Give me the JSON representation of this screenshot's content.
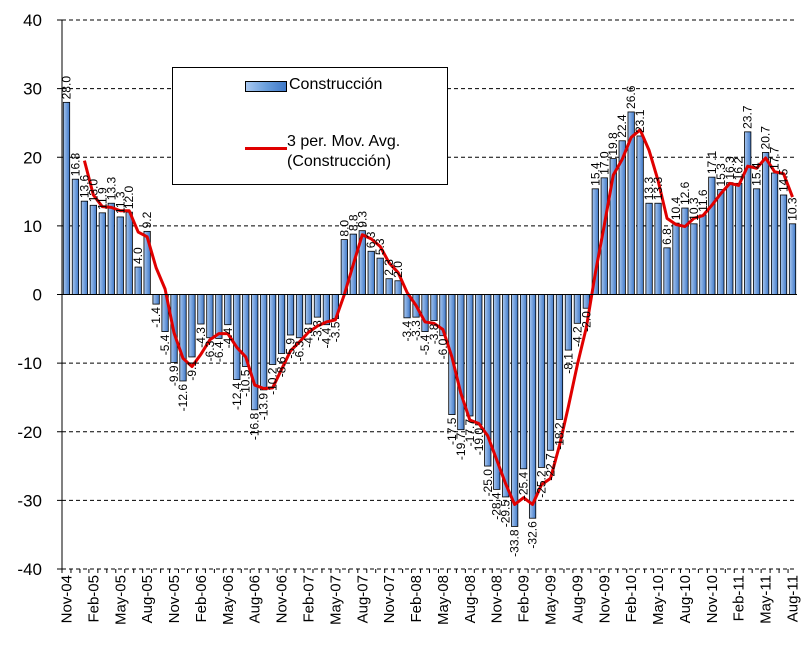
{
  "chart_data": {
    "type": "bar",
    "categories": [
      "Nov-04",
      null,
      null,
      "Feb-05",
      null,
      null,
      "May-05",
      null,
      null,
      "Aug-05",
      null,
      null,
      "Nov-05",
      null,
      null,
      "Feb-06",
      null,
      null,
      "May-06",
      null,
      null,
      "Aug-06",
      null,
      null,
      "Nov-06",
      null,
      null,
      "Feb-07",
      null,
      null,
      "May-07",
      null,
      null,
      "Aug-07",
      null,
      null,
      "Nov-07",
      null,
      null,
      "Feb-08",
      null,
      null,
      "May-08",
      null,
      null,
      "Aug-08",
      null,
      null,
      "Nov-08",
      null,
      null,
      "Feb-09",
      null,
      null,
      "May-09",
      null,
      null,
      "Aug-09",
      null,
      null,
      "Nov-09",
      null,
      null,
      "Feb-10",
      null,
      null,
      "May-10",
      null,
      null,
      "Aug-10",
      null,
      null,
      "Nov-10",
      null,
      null,
      "Feb-11",
      null,
      null,
      "May-11",
      null,
      null,
      "Aug-11"
    ],
    "series": [
      {
        "name": "Construcción",
        "type": "bar",
        "color": "#6a9fdc",
        "values": [
          28.0,
          16.8,
          13.6,
          13.0,
          11.9,
          13.3,
          11.3,
          12.0,
          4.0,
          9.2,
          -1.4,
          -5.4,
          -9.9,
          -12.6,
          -9.1,
          -4.3,
          -6.3,
          -6.4,
          -4.4,
          -12.4,
          -10.5,
          -16.8,
          -13.9,
          -10.2,
          -8.6,
          -5.9,
          -6.3,
          -4.3,
          -3.3,
          -4.4,
          -3.5,
          8.0,
          8.8,
          9.3,
          6.3,
          5.3,
          2.3,
          2.0,
          -3.4,
          -3.3,
          -5.4,
          -3.8,
          -6.0,
          -17.5,
          -19.7,
          -17.7,
          -19.0,
          -25.0,
          -28.4,
          -29.5,
          -33.8,
          -25.4,
          -32.6,
          -25.2,
          -22.7,
          -18.2,
          -8.1,
          -4.2,
          -2.0,
          15.4,
          17.0,
          19.8,
          22.4,
          26.6,
          23.1,
          13.3,
          13.3,
          6.8,
          10.4,
          12.6,
          10.3,
          11.6,
          17.1,
          15.3,
          16.3,
          16.2,
          23.7,
          15.4,
          20.7,
          17.7,
          14.5,
          10.3
        ],
        "value_labels": [
          "28.0",
          "16.8",
          "13.6",
          "13.0",
          "11.9",
          "13.3",
          "11.3",
          "12.0",
          "4.0",
          "9.2",
          "-1.4",
          "-5.4",
          "-9.9",
          "-12.6",
          "-9.1",
          "-4.3",
          "-6.3",
          "-6.4",
          "-4.4",
          "-12.4",
          "-10.5",
          "-16.8",
          "-13.9",
          "-10.2",
          "-8.6",
          "-5.9",
          "-6.3",
          "-4.3",
          "-3.3",
          "-4.4",
          "-3.5",
          "8.0",
          "8.8",
          "9.3",
          "6.3",
          "5.3",
          "2.3",
          "2.0",
          "-3.4",
          "-3.3",
          "-5.4",
          "-3.8",
          "-6.0",
          "-17.5",
          "-19.7",
          "-17.7",
          "-19.0",
          "-25.0",
          "-28.4",
          "-29.5",
          "-33.8",
          "-25.4",
          "-32.6",
          "-25.2",
          "-22.7",
          "-18.2",
          "-8.1",
          "-4.2",
          "-2.0",
          "15.4",
          "17.0",
          "19.8",
          "22.4",
          "26.6",
          "23.1",
          "13.3",
          "13.3",
          "6.8",
          "10.4",
          "12.6",
          "10.3",
          "11.6",
          "17.1",
          "15.3",
          "16.3",
          "16.2",
          "23.7",
          "15.4",
          "20.7",
          "17.7",
          "14.5",
          "10.3"
        ]
      },
      {
        "name": "3 per. Mov. Avg. (Construcción)",
        "type": "line",
        "color": "#e00000",
        "values": [
          null,
          null,
          19.5,
          14.5,
          12.8,
          12.7,
          12.2,
          12.2,
          9.1,
          8.4,
          3.9,
          0.8,
          -5.6,
          -9.3,
          -10.5,
          -8.7,
          -6.6,
          -5.7,
          -5.7,
          -7.7,
          -9.1,
          -13.2,
          -13.7,
          -13.6,
          -10.9,
          -8.2,
          -6.9,
          -5.5,
          -4.6,
          -4.0,
          -3.7,
          0.0,
          4.4,
          8.7,
          8.1,
          7.0,
          4.6,
          3.2,
          0.3,
          -1.6,
          -4.0,
          -4.2,
          -5.1,
          -9.1,
          -14.4,
          -18.3,
          -18.8,
          -20.6,
          -24.1,
          -27.6,
          -30.6,
          -29.6,
          -30.6,
          -27.7,
          -26.8,
          -22.0,
          -16.3,
          -10.2,
          -4.8,
          3.1,
          10.1,
          17.4,
          19.7,
          22.9,
          24.0,
          21.0,
          16.6,
          11.1,
          10.2,
          9.9,
          11.1,
          11.5,
          13.0,
          14.7,
          16.2,
          15.9,
          18.7,
          18.4,
          19.9,
          17.9,
          17.6,
          14.2
        ]
      }
    ],
    "ylim": [
      -40,
      40
    ],
    "yticks": [
      -40,
      -30,
      -20,
      -10,
      0,
      10,
      20,
      30,
      40
    ],
    "grid": true
  }
}
